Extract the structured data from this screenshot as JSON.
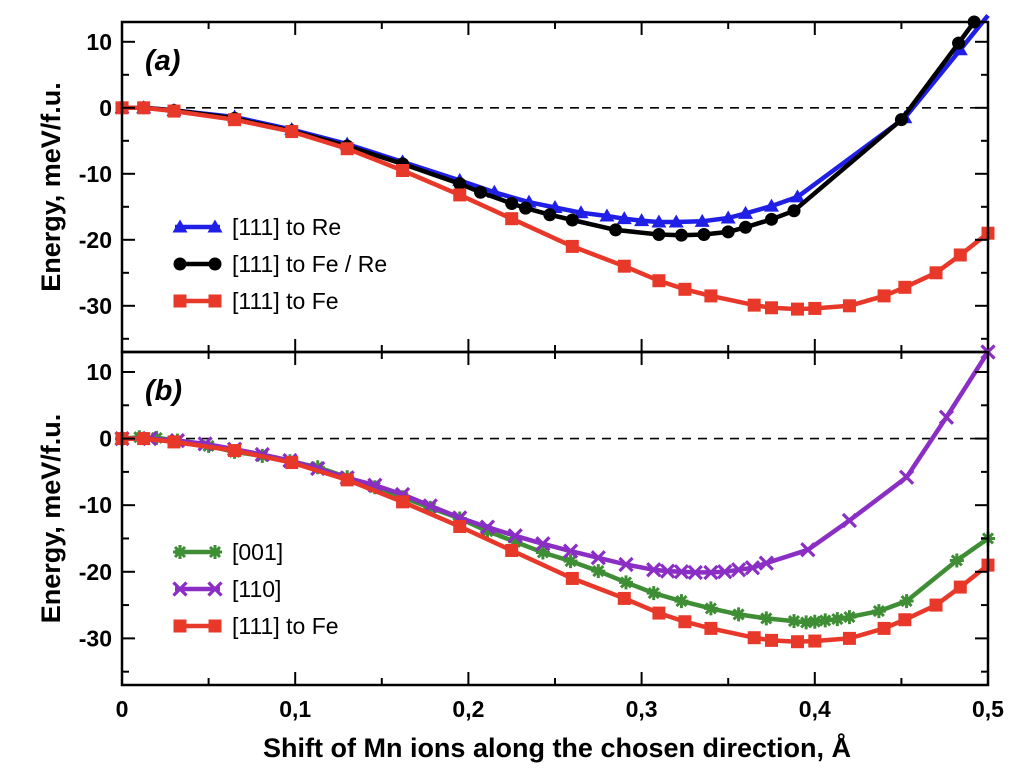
{
  "chart_data": [
    {
      "type": "line",
      "panel_label": "(a)",
      "ylabel": "Energy, meV/f.u.",
      "xlim": [
        0,
        0.5
      ],
      "ylim": [
        -37,
        13
      ],
      "x_ticks": [
        0,
        0.1,
        0.2,
        0.3,
        0.4,
        0.5
      ],
      "x_tick_labels": [
        "",
        "",
        "",
        "",
        "",
        ""
      ],
      "y_ticks": [
        -30,
        -20,
        -10,
        0,
        10
      ],
      "y_tick_labels": [
        "-30",
        "-20",
        "-10",
        "0",
        "10"
      ],
      "reference_line": 0,
      "grid": false,
      "legend_position": "bottom-left",
      "series": [
        {
          "name": "[111] to Re",
          "color": "#1f1fe6",
          "marker": "triangle",
          "x": [
            0,
            0.0125,
            0.03,
            0.065,
            0.098,
            0.13,
            0.162,
            0.195,
            0.215,
            0.235,
            0.25,
            0.265,
            0.28,
            0.29,
            0.3,
            0.31,
            0.32,
            0.335,
            0.35,
            0.36,
            0.375,
            0.39,
            0.452,
            0.484,
            0.5
          ],
          "y": [
            0,
            0,
            -0.4,
            -1.4,
            -3.3,
            -5.5,
            -8.2,
            -11.0,
            -12.8,
            -14.3,
            -15.1,
            -15.9,
            -16.4,
            -16.8,
            -17.1,
            -17.3,
            -17.3,
            -17.2,
            -16.7,
            -16.0,
            -14.9,
            -13.5,
            -1.5,
            8.8,
            14.0
          ]
        },
        {
          "name": "[111] to Fe / Re",
          "color": "#000000",
          "marker": "circle",
          "x": [
            0,
            0.0125,
            0.03,
            0.065,
            0.098,
            0.13,
            0.162,
            0.195,
            0.207,
            0.225,
            0.233,
            0.247,
            0.26,
            0.285,
            0.31,
            0.323,
            0.336,
            0.35,
            0.36,
            0.375,
            0.388,
            0.45,
            0.483,
            0.492
          ],
          "y": [
            0,
            0,
            -0.4,
            -1.6,
            -3.5,
            -5.8,
            -8.5,
            -11.5,
            -12.8,
            -14.5,
            -15.2,
            -16.2,
            -17.0,
            -18.5,
            -19.2,
            -19.3,
            -19.2,
            -18.8,
            -18.1,
            -16.9,
            -15.6,
            -1.8,
            9.8,
            13.0
          ]
        },
        {
          "name": "[111] to Fe",
          "color": "#e8382a",
          "marker": "square",
          "x": [
            0,
            0.0125,
            0.03,
            0.065,
            0.098,
            0.13,
            0.162,
            0.195,
            0.225,
            0.26,
            0.29,
            0.31,
            0.325,
            0.34,
            0.365,
            0.375,
            0.39,
            0.4,
            0.42,
            0.44,
            0.452,
            0.47,
            0.484,
            0.5
          ],
          "y": [
            0,
            0,
            -0.5,
            -1.8,
            -3.6,
            -6.2,
            -9.5,
            -13.2,
            -16.8,
            -21.0,
            -24.0,
            -26.2,
            -27.5,
            -28.5,
            -29.9,
            -30.3,
            -30.5,
            -30.4,
            -30.0,
            -28.5,
            -27.2,
            -25.0,
            -22.3,
            -19.0
          ]
        }
      ]
    },
    {
      "type": "line",
      "panel_label": "(b)",
      "xlabel": "Shift of Mn ions along the chosen direction, Å",
      "ylabel": "Energy, meV/f.u.",
      "xlim": [
        0,
        0.5
      ],
      "ylim": [
        -37,
        13
      ],
      "x_ticks": [
        0,
        0.1,
        0.2,
        0.3,
        0.4,
        0.5
      ],
      "x_tick_labels": [
        "0",
        "0,1",
        "0,2",
        "0,3",
        "0,4",
        "0,5"
      ],
      "y_ticks": [
        -30,
        -20,
        -10,
        0,
        10
      ],
      "y_tick_labels": [
        "-30",
        "-20",
        "-10",
        "0",
        "10"
      ],
      "reference_line": 0,
      "grid": false,
      "legend_position": "bottom-left",
      "series": [
        {
          "name": "[001]",
          "color": "#3f8e35",
          "marker": "asterisk",
          "x": [
            0,
            0.01,
            0.02,
            0.032,
            0.05,
            0.065,
            0.081,
            0.097,
            0.113,
            0.13,
            0.146,
            0.162,
            0.178,
            0.195,
            0.211,
            0.227,
            0.243,
            0.259,
            0.275,
            0.291,
            0.307,
            0.323,
            0.34,
            0.356,
            0.372,
            0.388,
            0.395,
            0.4,
            0.406,
            0.413,
            0.42,
            0.437,
            0.453,
            0.482,
            0.5
          ],
          "y": [
            0,
            0.2,
            0.1,
            -0.3,
            -1.1,
            -2.0,
            -2.6,
            -3.4,
            -4.3,
            -5.8,
            -7.3,
            -8.8,
            -10.4,
            -12.0,
            -13.9,
            -15.5,
            -17.1,
            -18.4,
            -19.9,
            -21.6,
            -23.2,
            -24.4,
            -25.5,
            -26.4,
            -27.0,
            -27.4,
            -27.6,
            -27.5,
            -27.3,
            -27.1,
            -26.8,
            -25.9,
            -24.4,
            -18.3,
            -15.0
          ]
        },
        {
          "name": "[110]",
          "color": "#8a2ec4",
          "marker": "cross",
          "x": [
            0,
            0.016,
            0.032,
            0.048,
            0.065,
            0.081,
            0.097,
            0.113,
            0.13,
            0.146,
            0.162,
            0.178,
            0.195,
            0.211,
            0.227,
            0.243,
            0.259,
            0.275,
            0.291,
            0.307,
            0.315,
            0.323,
            0.331,
            0.34,
            0.348,
            0.356,
            0.364,
            0.372,
            0.396,
            0.42,
            0.453,
            0.476,
            0.5
          ],
          "y": [
            0,
            0,
            -0.3,
            -0.8,
            -1.6,
            -2.4,
            -3.3,
            -4.5,
            -5.9,
            -7.0,
            -8.4,
            -10.1,
            -11.9,
            -13.3,
            -14.6,
            -15.8,
            -16.9,
            -17.9,
            -18.9,
            -19.7,
            -19.9,
            -20.0,
            -20.1,
            -20.1,
            -20.0,
            -19.7,
            -19.4,
            -18.7,
            -16.7,
            -12.3,
            -5.8,
            3.2,
            13.0
          ]
        },
        {
          "name": "[111] to Fe",
          "color": "#e8382a",
          "marker": "square",
          "x": [
            0,
            0.0125,
            0.03,
            0.065,
            0.098,
            0.13,
            0.162,
            0.195,
            0.225,
            0.26,
            0.29,
            0.31,
            0.325,
            0.34,
            0.365,
            0.375,
            0.39,
            0.4,
            0.42,
            0.44,
            0.452,
            0.47,
            0.484,
            0.5
          ],
          "y": [
            0,
            0,
            -0.5,
            -1.8,
            -3.6,
            -6.2,
            -9.5,
            -13.2,
            -16.8,
            -21.0,
            -24.0,
            -26.2,
            -27.5,
            -28.5,
            -29.9,
            -30.3,
            -30.5,
            -30.4,
            -30.0,
            -28.5,
            -27.2,
            -25.0,
            -22.3,
            -19.0
          ]
        }
      ]
    }
  ]
}
